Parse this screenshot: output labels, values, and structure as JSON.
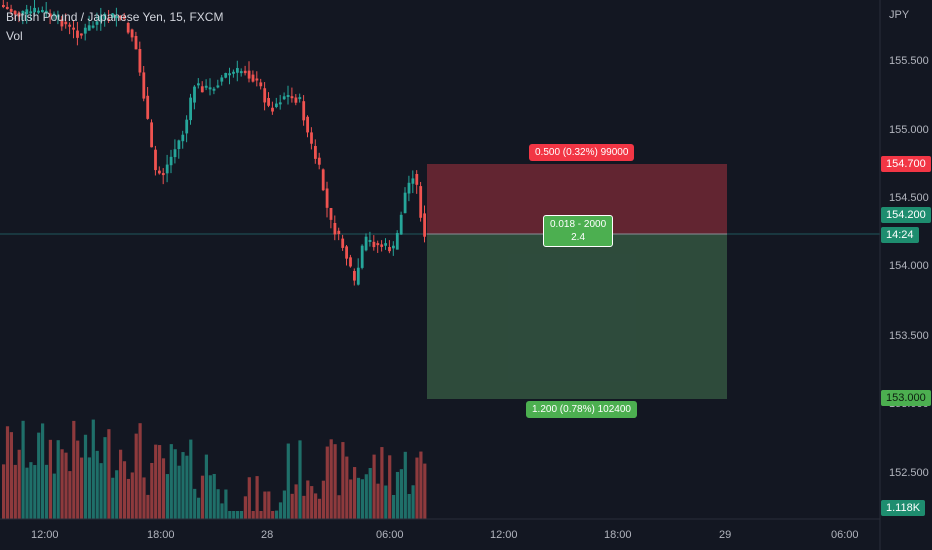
{
  "symbol_title": "British Pound / Japanese Yen, 15, FXCM",
  "volume_label": "Vol",
  "currency": "JPY",
  "price_axis": [
    "155.500",
    "155.000",
    "154.500",
    "154.000",
    "153.500",
    "153.000",
    "152.500"
  ],
  "time_axis": [
    "12:00",
    "18:00",
    "28",
    "06:00",
    "12:00",
    "18:00",
    "29",
    "06:00"
  ],
  "tags": {
    "stop_price": "154.700",
    "current_price": "154.200",
    "countdown": "14:24",
    "target_price": "153.000",
    "volume": "1.118K"
  },
  "position": {
    "stop_label": "0.500 (0.32%) 99000",
    "center_line1": "0.018 - 2000",
    "center_line2": "2.4",
    "target_label": "1.200 (0.78%) 102400"
  },
  "colors": {
    "background": "#131722",
    "up": "#26a69a",
    "down": "#ef5350",
    "stop_zone": "#6b2733",
    "target_zone": "#2f4e3d",
    "price_tag_green": "#1e8d6f"
  }
}
